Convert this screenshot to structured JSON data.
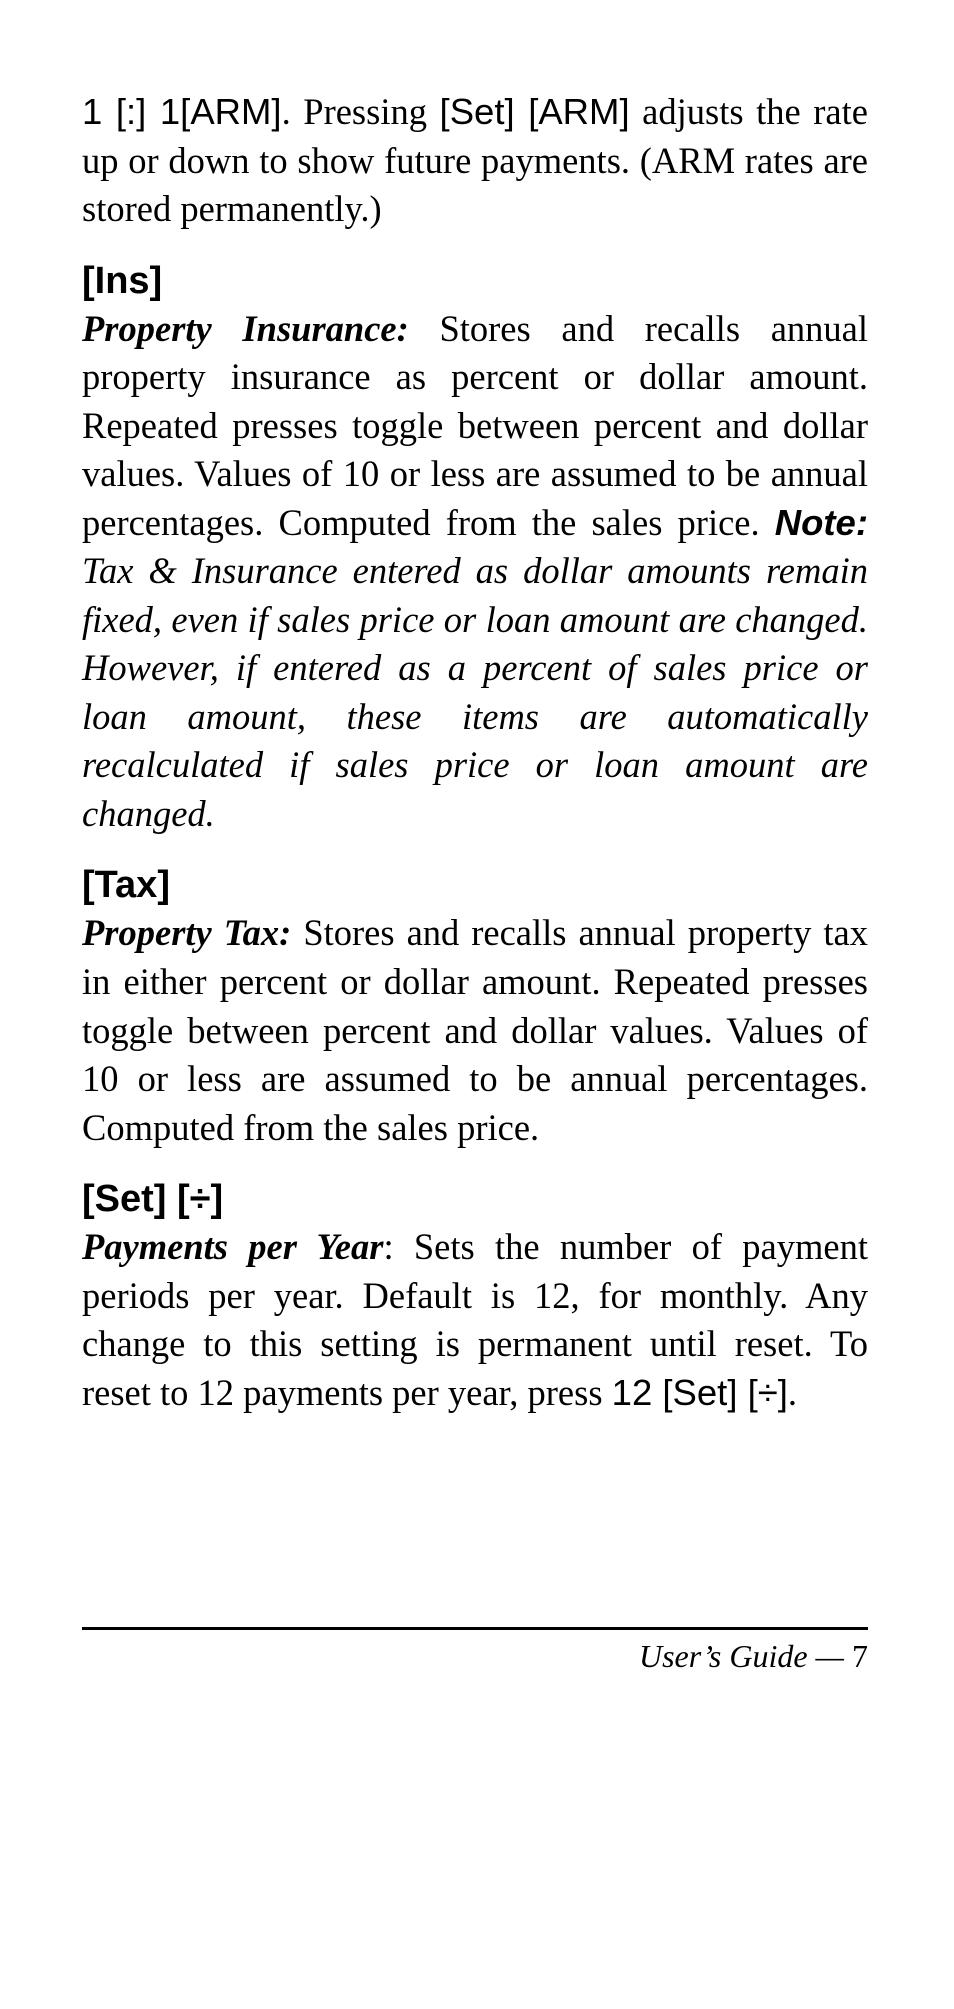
{
  "top_paragraph": {
    "lead_sans": "1 [:] 1[ARM]",
    "mid_plain": ". Pressing ",
    "mid_sans": "[Set] [ARM]",
    "tail": " adjusts the rate up or down to show future pay­ments. (ARM rates are stored permanently.)"
  },
  "sections": [
    {
      "heading": "[Ins]",
      "term": "Property Insurance:",
      "body": " Stores and recalls annual property insurance as percent or dollar amount. Repeated presses toggle between percent and dollar val­ues. Values of 10 or less are assumed to be annual percentages. Computed from the sales price. ",
      "note_label": "Note:",
      "note_body": " Tax & Insurance entered as dollar amounts remain fixed, even if sales price or loan amount are changed. However, if entered as a percent of sales price or loan amount, these items are automatically recalculated if sales price or loan amount are changed."
    },
    {
      "heading": "[Tax]",
      "term": "Property Tax:",
      "body": " Stores and recalls annual property tax in either percent or dollar amount. Repeated presses toggle between percent and dollar values. Values of 10 or less are assumed to be annual percentages. Computed from the sales price."
    },
    {
      "heading": "[Set] [÷]",
      "term": "Payments per Year",
      "body_pre": ": Sets the number of payment periods per year. Default is 12, for monthly. Any change to this setting is permanent until reset. To reset to 12 pay­ments per year, press ",
      "body_sans": "12 [Set] [÷]",
      "body_post": "."
    }
  ],
  "footer": {
    "label": "User’s Guide — ",
    "page": "7"
  }
}
